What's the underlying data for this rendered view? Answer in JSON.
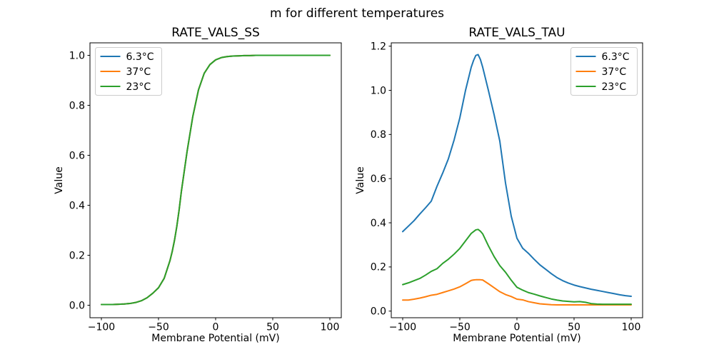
{
  "figure": {
    "suptitle": "m for different temperatures",
    "background": "#ffffff",
    "frame_color": "#000000",
    "legend_border_color": "#cccccc"
  },
  "chart_data": [
    {
      "type": "line",
      "title": "RATE_VALS_SS",
      "xlabel": "Membrane Potential (mV)",
      "ylabel": "Value",
      "xlim": [
        -110,
        110
      ],
      "ylim": [
        -0.05,
        1.05
      ],
      "xticks": [
        -100,
        -50,
        0,
        50,
        100
      ],
      "xtick_labels": [
        "−100",
        "−50",
        "0",
        "50",
        "100"
      ],
      "yticks": [
        0.0,
        0.2,
        0.4,
        0.6,
        0.8,
        1.0
      ],
      "ytick_labels": [
        "0.0",
        "0.2",
        "0.4",
        "0.6",
        "0.8",
        "1.0"
      ],
      "grid": false,
      "legend_position": "upper-left",
      "note": "all three temperature curves coincide exactly (identical sigmoid); green drawn last hides blue and orange",
      "x": [
        -100,
        -95,
        -90,
        -85,
        -80,
        -75,
        -70,
        -65,
        -60,
        -55,
        -50,
        -45,
        -40,
        -38,
        -36,
        -34,
        -32,
        -30,
        -25,
        -20,
        -15,
        -10,
        -5,
        0,
        5,
        10,
        15,
        20,
        25,
        30,
        35,
        40,
        45,
        50,
        55,
        60,
        65,
        70,
        75,
        80,
        85,
        90,
        95,
        100
      ],
      "series": [
        {
          "name": "6.3°C",
          "color": "#1f77b4",
          "values": [
            0.003,
            0.003,
            0.003,
            0.004,
            0.005,
            0.007,
            0.011,
            0.018,
            0.03,
            0.048,
            0.07,
            0.108,
            0.178,
            0.215,
            0.26,
            0.315,
            0.38,
            0.455,
            0.615,
            0.755,
            0.862,
            0.928,
            0.963,
            0.982,
            0.991,
            0.995,
            0.997,
            0.998,
            0.999,
            0.999,
            1.0,
            1.0,
            1.0,
            1.0,
            1.0,
            1.0,
            1.0,
            1.0,
            1.0,
            1.0,
            1.0,
            1.0,
            1.0,
            1.0
          ]
        },
        {
          "name": "37°C",
          "color": "#ff7f0e",
          "values": [
            0.003,
            0.003,
            0.003,
            0.004,
            0.005,
            0.007,
            0.011,
            0.018,
            0.03,
            0.048,
            0.07,
            0.108,
            0.178,
            0.215,
            0.26,
            0.315,
            0.38,
            0.455,
            0.615,
            0.755,
            0.862,
            0.928,
            0.963,
            0.982,
            0.991,
            0.995,
            0.997,
            0.998,
            0.999,
            0.999,
            1.0,
            1.0,
            1.0,
            1.0,
            1.0,
            1.0,
            1.0,
            1.0,
            1.0,
            1.0,
            1.0,
            1.0,
            1.0,
            1.0
          ]
        },
        {
          "name": "23°C",
          "color": "#2ca02c",
          "values": [
            0.003,
            0.003,
            0.003,
            0.004,
            0.005,
            0.007,
            0.011,
            0.018,
            0.03,
            0.048,
            0.07,
            0.108,
            0.178,
            0.215,
            0.26,
            0.315,
            0.38,
            0.455,
            0.615,
            0.755,
            0.862,
            0.928,
            0.963,
            0.982,
            0.991,
            0.995,
            0.997,
            0.998,
            0.999,
            0.999,
            1.0,
            1.0,
            1.0,
            1.0,
            1.0,
            1.0,
            1.0,
            1.0,
            1.0,
            1.0,
            1.0,
            1.0,
            1.0,
            1.0
          ]
        }
      ]
    },
    {
      "type": "line",
      "title": "RATE_VALS_TAU",
      "xlabel": "Membrane Potential (mV)",
      "ylabel": "Value",
      "xlim": [
        -110,
        110
      ],
      "ylim": [
        -0.03,
        1.215
      ],
      "xticks": [
        -100,
        -50,
        0,
        50,
        100
      ],
      "xtick_labels": [
        "−100",
        "−50",
        "0",
        "50",
        "100"
      ],
      "yticks": [
        0.0,
        0.2,
        0.4,
        0.6,
        0.8,
        1.0,
        1.2
      ],
      "ytick_labels": [
        "0.0",
        "0.2",
        "0.4",
        "0.6",
        "0.8",
        "1.0",
        "1.2"
      ],
      "grid": false,
      "legend_position": "upper-right",
      "note": "bell-shaped tau curves peaking near -35 mV: blue peak 1.16, green peak 0.37, orange peak 0.14",
      "x": [
        -100,
        -95,
        -90,
        -85,
        -80,
        -75,
        -70,
        -65,
        -60,
        -55,
        -50,
        -45,
        -40,
        -38,
        -36,
        -34,
        -32,
        -30,
        -25,
        -20,
        -15,
        -10,
        -5,
        0,
        5,
        10,
        15,
        20,
        25,
        30,
        35,
        40,
        45,
        50,
        55,
        60,
        65,
        70,
        75,
        80,
        85,
        90,
        95,
        100
      ],
      "series": [
        {
          "name": "6.3°C",
          "color": "#1f77b4",
          "values": [
            0.36,
            0.385,
            0.41,
            0.44,
            0.468,
            0.498,
            0.565,
            0.625,
            0.69,
            0.775,
            0.875,
            1.0,
            1.105,
            1.135,
            1.158,
            1.162,
            1.14,
            1.105,
            1.0,
            0.89,
            0.77,
            0.58,
            0.43,
            0.33,
            0.285,
            0.262,
            0.235,
            0.21,
            0.19,
            0.17,
            0.152,
            0.138,
            0.127,
            0.118,
            0.111,
            0.105,
            0.099,
            0.094,
            0.089,
            0.084,
            0.079,
            0.074,
            0.07,
            0.067
          ]
        },
        {
          "name": "37°C",
          "color": "#ff7f0e",
          "values": [
            0.05,
            0.05,
            0.054,
            0.059,
            0.065,
            0.072,
            0.076,
            0.084,
            0.092,
            0.1,
            0.11,
            0.124,
            0.139,
            0.141,
            0.142,
            0.142,
            0.142,
            0.141,
            0.124,
            0.106,
            0.088,
            0.075,
            0.066,
            0.054,
            0.051,
            0.043,
            0.038,
            0.033,
            0.031,
            0.029,
            0.028,
            0.028,
            0.028,
            0.028,
            0.028,
            0.028,
            0.028,
            0.028,
            0.028,
            0.028,
            0.028,
            0.028,
            0.028,
            0.028
          ]
        },
        {
          "name": "23°C",
          "color": "#2ca02c",
          "values": [
            0.12,
            0.128,
            0.138,
            0.148,
            0.163,
            0.18,
            0.192,
            0.216,
            0.235,
            0.258,
            0.284,
            0.318,
            0.352,
            0.36,
            0.368,
            0.37,
            0.362,
            0.35,
            0.296,
            0.247,
            0.206,
            0.176,
            0.14,
            0.108,
            0.095,
            0.084,
            0.077,
            0.069,
            0.062,
            0.055,
            0.05,
            0.046,
            0.044,
            0.042,
            0.043,
            0.04,
            0.034,
            0.032,
            0.031,
            0.031,
            0.031,
            0.031,
            0.031,
            0.031
          ]
        }
      ]
    }
  ]
}
